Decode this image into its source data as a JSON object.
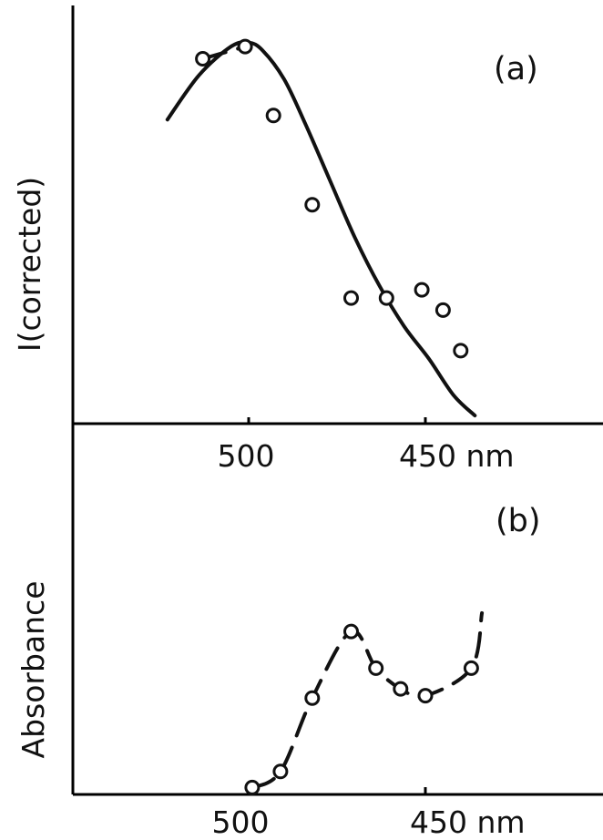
{
  "chart_data": [
    {
      "panel": "(a)",
      "type": "line",
      "ylabel": "I(corrected)",
      "x_units": "nm",
      "x_ticks": [
        {
          "value": 500,
          "label": "500"
        },
        {
          "value": 450,
          "label": "450 nm"
        }
      ],
      "xlim": [
        524,
        434
      ],
      "ylim": [
        0,
        1
      ],
      "series": [
        {
          "style": "solid-line",
          "x": [
            523,
            514,
            505,
            500,
            496,
            490,
            484,
            477,
            470,
            463,
            456,
            449,
            442,
            436
          ],
          "y": [
            0.75,
            0.86,
            0.93,
            0.94,
            0.92,
            0.85,
            0.74,
            0.6,
            0.46,
            0.34,
            0.24,
            0.16,
            0.07,
            0.02
          ]
        },
        {
          "style": "circles-dashed",
          "x": [
            513,
            501,
            493,
            482,
            471,
            461,
            451,
            440
          ],
          "y": [
            0.9,
            0.93,
            0.76,
            0.54,
            0.31,
            0.31,
            0.33,
            0.18
          ],
          "dashed_upto_index": 1
        },
        {
          "style": "circles",
          "x": [
            445
          ],
          "y": [
            0.28
          ]
        }
      ]
    },
    {
      "panel": "(b)",
      "type": "line",
      "ylabel": "Absorbance",
      "x_units": "nm",
      "x_ticks": [
        {
          "value": 500,
          "label": "500"
        },
        {
          "value": 450,
          "label": "450 nm"
        }
      ],
      "xlim": [
        524,
        434
      ],
      "ylim": [
        0,
        1
      ],
      "series": [
        {
          "style": "circles-dashed",
          "x": [
            499,
            491,
            482,
            471,
            464,
            457,
            450,
            437
          ],
          "y": [
            0.03,
            0.1,
            0.42,
            0.71,
            0.55,
            0.46,
            0.43,
            0.55
          ],
          "line_extends_to": {
            "x": 434,
            "y": 0.79
          }
        }
      ]
    }
  ]
}
